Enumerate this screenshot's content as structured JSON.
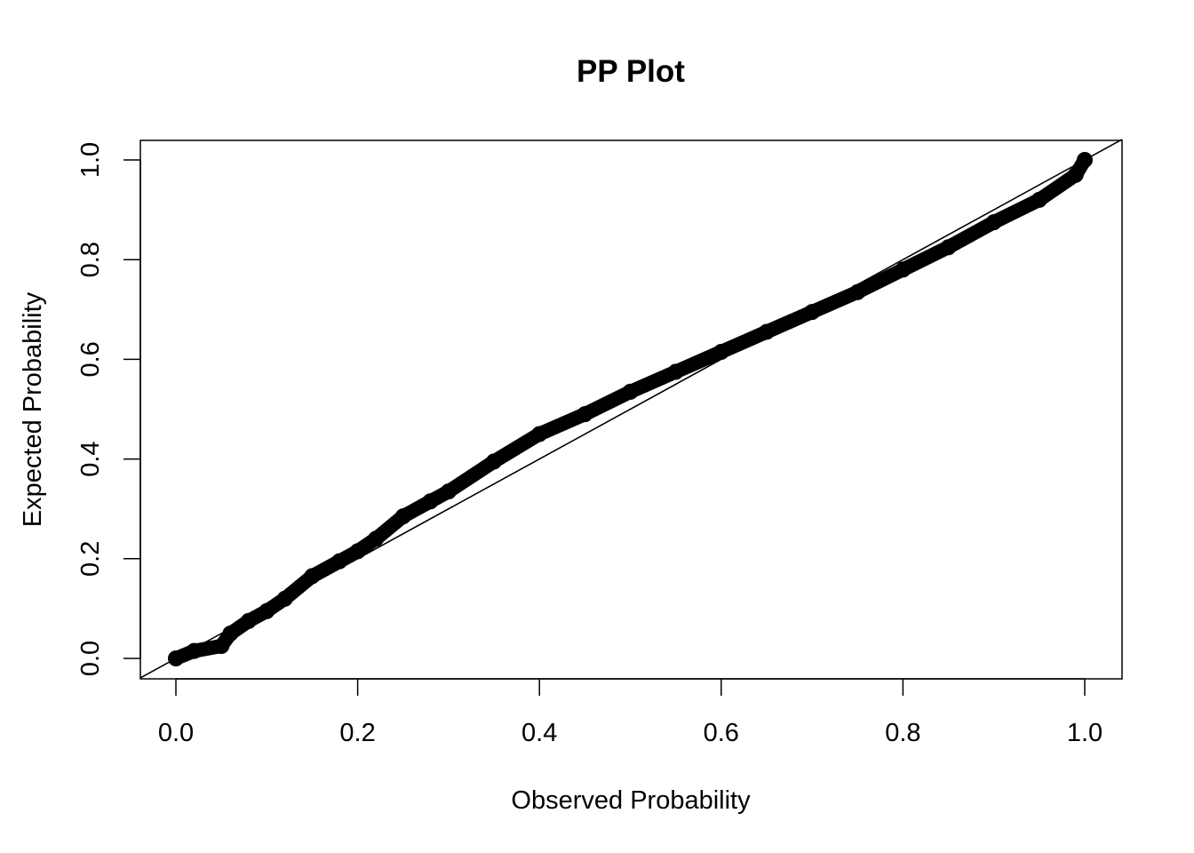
{
  "chart_data": {
    "type": "scatter",
    "title": "PP Plot",
    "xlabel": "Observed Probability",
    "ylabel": "Expected Probability",
    "xlim": [
      0.0,
      1.0
    ],
    "ylim": [
      0.0,
      1.0
    ],
    "x_ticks": [
      "0.0",
      "0.2",
      "0.4",
      "0.6",
      "0.8",
      "1.0"
    ],
    "y_ticks": [
      "0.0",
      "0.2",
      "0.4",
      "0.6",
      "0.8",
      "1.0"
    ],
    "grid": false,
    "reference_line": {
      "slope": 1,
      "intercept": 0
    },
    "series": [
      {
        "x": [
          0.0,
          0.02,
          0.05,
          0.06,
          0.08,
          0.1,
          0.12,
          0.15,
          0.18,
          0.2,
          0.22,
          0.25,
          0.28,
          0.3,
          0.35,
          0.4,
          0.45,
          0.5,
          0.55,
          0.6,
          0.65,
          0.7,
          0.75,
          0.8,
          0.85,
          0.9,
          0.95,
          0.99,
          1.0
        ],
        "y": [
          0.0,
          0.015,
          0.025,
          0.05,
          0.075,
          0.095,
          0.12,
          0.165,
          0.195,
          0.215,
          0.24,
          0.285,
          0.315,
          0.335,
          0.395,
          0.45,
          0.49,
          0.535,
          0.575,
          0.615,
          0.655,
          0.695,
          0.735,
          0.78,
          0.825,
          0.875,
          0.92,
          0.97,
          1.0
        ]
      }
    ]
  }
}
